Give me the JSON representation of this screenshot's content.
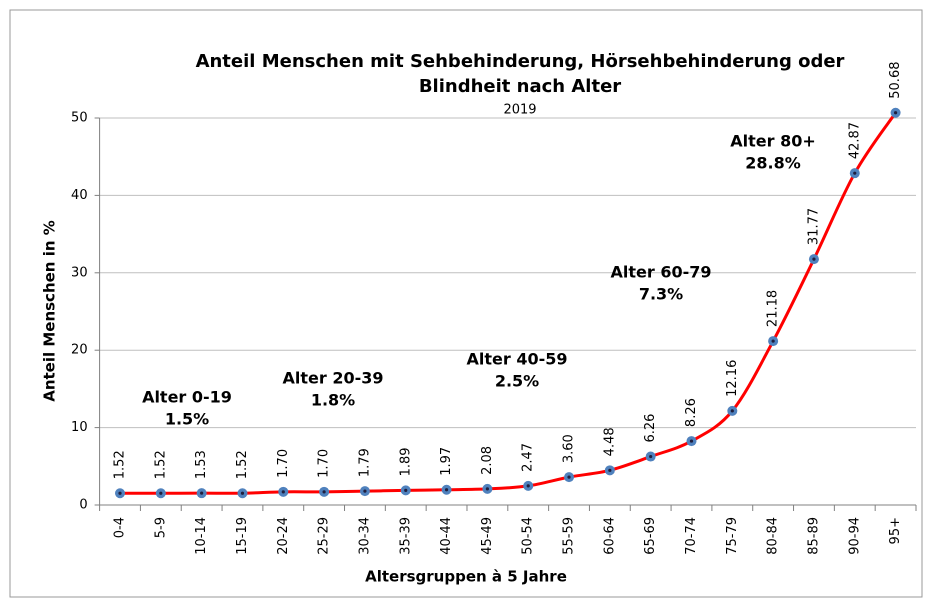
{
  "chart_data": {
    "type": "line",
    "title": [
      "Anteil Menschen mit Sehbehinderung, Hörsehbehinderung oder",
      "Blindheit nach Alter"
    ],
    "subtitle": "2019",
    "y_label": "Anteil Menschen in %",
    "x_label": "Altersgruppen à 5 Jahre",
    "categories": [
      "0-4",
      "5-9",
      "10-14",
      "15-19",
      "20-24",
      "25-29",
      "30-34",
      "35-39",
      "40-44",
      "45-49",
      "50-54",
      "55-59",
      "60-64",
      "65-69",
      "70-74",
      "75-79",
      "80-84",
      "85-89",
      "90-94",
      "95+"
    ],
    "series": [
      {
        "name": "Anteil",
        "color": "#ff0000",
        "marker_color": "#4f81bd",
        "values": [
          1.52,
          1.52,
          1.53,
          1.52,
          1.7,
          1.7,
          1.79,
          1.89,
          1.97,
          2.08,
          2.47,
          3.6,
          4.48,
          6.26,
          8.26,
          12.16,
          21.18,
          31.77,
          42.87,
          50.68
        ],
        "value_labels": [
          "1.52",
          "1.52",
          "1.53",
          "1.52",
          "1.70",
          "1.70",
          "1.79",
          "1.89",
          "1.97",
          "2.08",
          "2.47",
          "3.60",
          "4.48",
          "6.26",
          "8.26",
          "12.16",
          "21.18",
          "31.77",
          "42.87",
          "50.68"
        ]
      }
    ],
    "ylim": [
      0,
      50
    ],
    "yticks": [
      0,
      10,
      20,
      30,
      40,
      50
    ],
    "grid": true,
    "annotations": [
      [
        "Alter 0-19",
        "1.5%"
      ],
      [
        "Alter 20-39",
        "1.8%"
      ],
      [
        "Alter 40-59",
        "2.5%"
      ],
      [
        "Alter 60-79",
        "7.3%"
      ],
      [
        "Alter 80+",
        "28.8%"
      ]
    ]
  }
}
